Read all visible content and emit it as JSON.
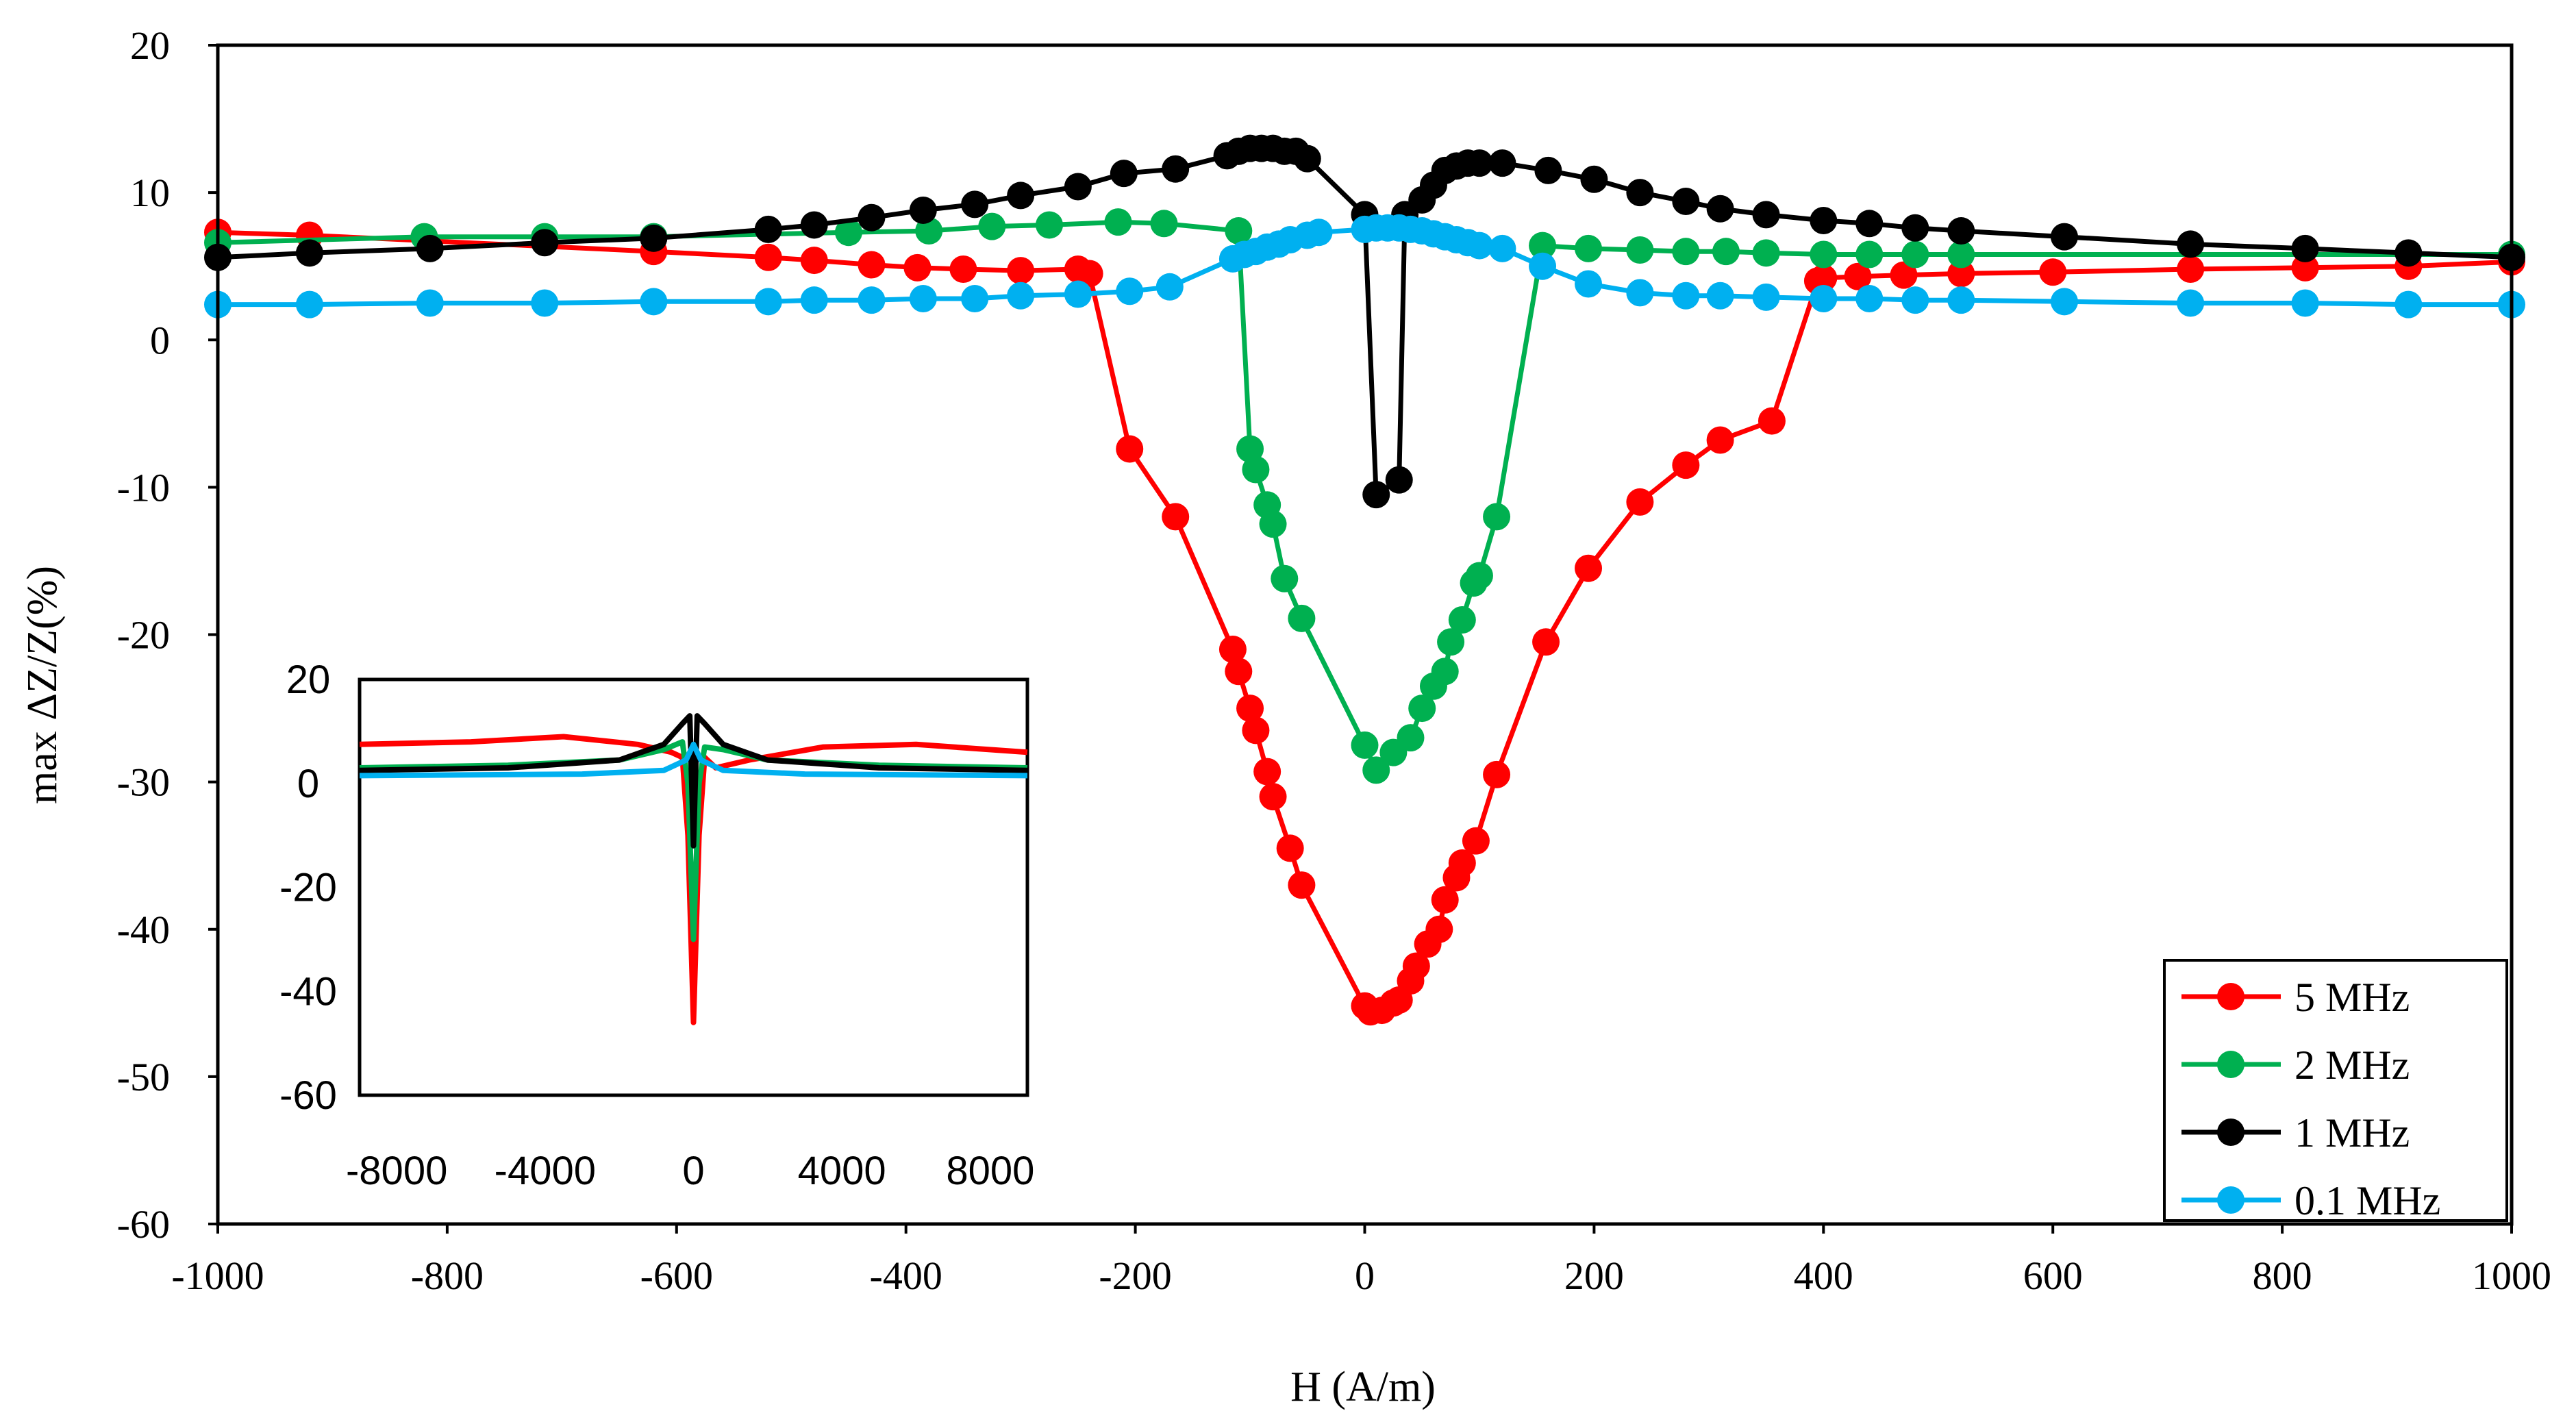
{
  "chart_data": [
    {
      "type": "line",
      "xlabel": "H (A/m)",
      "ylabel": "max ΔZ/Z(%)",
      "xlim": [
        -1000,
        1000
      ],
      "ylim": [
        -60,
        20
      ],
      "xticks": [
        -1000,
        -800,
        -600,
        -400,
        -200,
        0,
        200,
        400,
        600,
        800,
        1000
      ],
      "yticks": [
        -60,
        -50,
        -40,
        -30,
        -20,
        -10,
        0,
        10,
        20
      ],
      "xtick_labels": [
        "-1000",
        "-800",
        "-600",
        "-400",
        "-200",
        "0",
        "200",
        "400",
        "600",
        "800",
        "1000"
      ],
      "ytick_labels": [
        "-60",
        "-50",
        "-40",
        "-30",
        "-20",
        "-10",
        "0",
        "10",
        "20"
      ],
      "legend_position": "bottom-right",
      "series": [
        {
          "name": "5 MHz",
          "color": "#ff0000",
          "x": [
            -1000,
            -920,
            -620,
            -520,
            -480,
            -430,
            -390,
            -350,
            -300,
            -250,
            -240,
            -205,
            -165,
            -115,
            -110,
            -100,
            -95,
            -85,
            -80,
            -65,
            -55,
            0,
            5,
            15,
            25,
            30,
            40,
            45,
            55,
            65,
            70,
            80,
            85,
            97,
            115,
            158,
            195,
            240,
            280,
            310,
            355,
            395,
            400,
            430,
            470,
            520,
            600,
            720,
            820,
            910,
            1000
          ],
          "y": [
            7.3,
            7.1,
            6.0,
            5.6,
            5.4,
            5.1,
            4.9,
            4.8,
            4.7,
            4.8,
            4.5,
            -7.4,
            -12.0,
            -21.0,
            -22.5,
            -25.0,
            -26.5,
            -29.3,
            -31.0,
            -34.5,
            -37.0,
            -45.2,
            -45.6,
            -45.5,
            -45.0,
            -44.8,
            -43.5,
            -42.5,
            -41.0,
            -40.0,
            -38.0,
            -36.5,
            -35.5,
            -34.0,
            -29.5,
            -20.5,
            -15.5,
            -11.0,
            -8.5,
            -6.8,
            -5.5,
            4.0,
            4.2,
            4.3,
            4.4,
            4.5,
            4.6,
            4.8,
            4.9,
            5.0,
            5.3
          ]
        },
        {
          "name": "2 MHz",
          "color": "#00b050",
          "x": [
            -1000,
            -820,
            -715,
            -620,
            -450,
            -380,
            -325,
            -275,
            -215,
            -175,
            -110,
            -100,
            -95,
            -85,
            -80,
            -70,
            -55,
            0,
            10,
            25,
            40,
            50,
            60,
            70,
            75,
            85,
            95,
            100,
            115,
            155,
            195,
            240,
            280,
            315,
            350,
            400,
            440,
            480,
            520,
            1000
          ],
          "y": [
            6.6,
            7.0,
            7.0,
            7.0,
            7.3,
            7.4,
            7.7,
            7.8,
            8.0,
            7.9,
            7.4,
            -7.4,
            -8.8,
            -11.2,
            -12.5,
            -16.2,
            -18.9,
            -27.5,
            -29.2,
            -28.0,
            -27.0,
            -25.0,
            -23.5,
            -22.5,
            -20.5,
            -19.0,
            -16.5,
            -16.0,
            -12.0,
            6.4,
            6.2,
            6.1,
            6.0,
            6.0,
            5.9,
            5.8,
            5.8,
            5.8,
            5.8,
            5.8
          ]
        },
        {
          "name": "1 MHz",
          "color": "#000000",
          "x": [
            -1000,
            -920,
            -815,
            -715,
            -620,
            -520,
            -480,
            -430,
            -385,
            -340,
            -300,
            -250,
            -210,
            -165,
            -120,
            -110,
            -100,
            -90,
            -80,
            -70,
            -60,
            -50,
            0,
            10,
            30,
            35,
            50,
            60,
            70,
            80,
            90,
            100,
            120,
            160,
            200,
            240,
            280,
            310,
            350,
            400,
            440,
            480,
            520,
            610,
            720,
            820,
            910,
            1000
          ],
          "y": [
            5.6,
            5.9,
            6.2,
            6.6,
            6.9,
            7.5,
            7.8,
            8.3,
            8.8,
            9.2,
            9.8,
            10.4,
            11.3,
            11.6,
            12.5,
            12.8,
            13.0,
            13.0,
            13.0,
            12.8,
            12.8,
            12.3,
            8.5,
            -10.5,
            -9.5,
            8.5,
            9.5,
            10.5,
            11.5,
            11.8,
            12.0,
            12.0,
            12.0,
            11.5,
            10.9,
            10.0,
            9.4,
            8.9,
            8.5,
            8.1,
            7.9,
            7.6,
            7.4,
            7.0,
            6.5,
            6.2,
            5.9,
            5.6
          ]
        },
        {
          "name": "0.1 MHz",
          "color": "#00b0f0",
          "x": [
            -1000,
            -920,
            -815,
            -715,
            -620,
            -520,
            -480,
            -430,
            -385,
            -340,
            -300,
            -250,
            -205,
            -170,
            -115,
            -105,
            -95,
            -85,
            -75,
            -65,
            -50,
            -40,
            0,
            10,
            20,
            30,
            40,
            50,
            60,
            70,
            80,
            90,
            100,
            120,
            155,
            195,
            240,
            280,
            310,
            350,
            400,
            440,
            480,
            520,
            610,
            720,
            820,
            910,
            1000
          ],
          "y": [
            2.4,
            2.4,
            2.5,
            2.5,
            2.6,
            2.6,
            2.7,
            2.7,
            2.8,
            2.8,
            3.0,
            3.1,
            3.3,
            3.6,
            5.5,
            5.8,
            6.0,
            6.3,
            6.5,
            6.8,
            7.1,
            7.3,
            7.5,
            7.6,
            7.6,
            7.6,
            7.5,
            7.4,
            7.2,
            7.0,
            6.8,
            6.6,
            6.4,
            6.2,
            5.0,
            3.8,
            3.2,
            3.0,
            3.0,
            2.9,
            2.8,
            2.8,
            2.7,
            2.7,
            2.6,
            2.5,
            2.5,
            2.4,
            2.4
          ]
        }
      ]
    },
    {
      "type": "line",
      "title": "",
      "xlim": [
        -9000,
        9000
      ],
      "ylim": [
        -60,
        20
      ],
      "xticks": [
        -8000,
        -4000,
        0,
        4000,
        8000
      ],
      "yticks": [
        -60,
        -40,
        -20,
        0,
        20
      ],
      "xtick_labels": [
        "-8000",
        "-4000",
        "0",
        "4000",
        "8000"
      ],
      "ytick_labels": [
        "-60",
        "-40",
        "-20",
        "0",
        "20"
      ],
      "series": [
        {
          "name": "5 MHz",
          "color": "#ff0000",
          "x": [
            -9000,
            -6000,
            -3500,
            -1500,
            -600,
            -300,
            -150,
            0,
            150,
            300,
            600,
            1500,
            3500,
            6000,
            9000
          ],
          "y": [
            7.5,
            8.0,
            9.0,
            7.5,
            6.0,
            5.0,
            -10,
            -46,
            -10,
            5.0,
            3.0,
            4.5,
            7.0,
            7.5,
            6.0
          ]
        },
        {
          "name": "2 MHz",
          "color": "#00b050",
          "x": [
            -9000,
            -5000,
            -2000,
            -800,
            -300,
            -150,
            0,
            150,
            300,
            800,
            2000,
            5000,
            9000
          ],
          "y": [
            3.0,
            3.5,
            4.5,
            6.5,
            8.0,
            0,
            -30,
            0,
            7.0,
            6.5,
            4.5,
            3.5,
            3.0
          ]
        },
        {
          "name": "1 MHz",
          "color": "#000000",
          "x": [
            -9000,
            -5000,
            -2000,
            -800,
            -300,
            -100,
            0,
            100,
            300,
            800,
            2000,
            5000,
            9000
          ],
          "y": [
            2.5,
            3.0,
            4.5,
            7.5,
            11.5,
            13.0,
            -12,
            13.0,
            11.5,
            7.5,
            4.5,
            3.0,
            2.5
          ]
        },
        {
          "name": "0.1 MHz",
          "color": "#00b0f0",
          "x": [
            -9000,
            -3000,
            -800,
            -200,
            0,
            200,
            800,
            3000,
            9000
          ],
          "y": [
            1.5,
            1.8,
            2.5,
            4.5,
            7.5,
            4.5,
            2.5,
            1.8,
            1.5
          ]
        }
      ]
    }
  ]
}
